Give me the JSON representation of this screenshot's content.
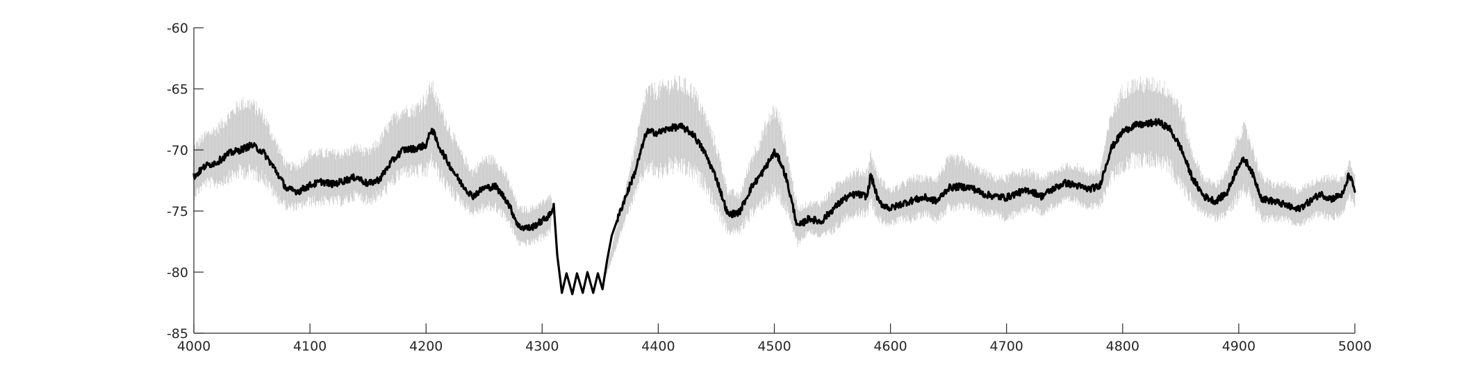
{
  "chart_data": {
    "type": "line",
    "title": "",
    "xlabel": "",
    "ylabel": "",
    "xlim": [
      4000,
      5000
    ],
    "ylim": [
      -85,
      -60
    ],
    "x_ticks": [
      4000,
      4100,
      4200,
      4300,
      4400,
      4500,
      4600,
      4700,
      4800,
      4900,
      5000
    ],
    "y_ticks": [
      -60,
      -65,
      -70,
      -75,
      -80,
      -85
    ],
    "x_tick_labels": [
      "4000",
      "4100",
      "4200",
      "4300",
      "4400",
      "4500",
      "4600",
      "4700",
      "4800",
      "4900",
      "5000"
    ],
    "y_tick_labels": [
      "-60",
      "-65",
      "-70",
      "-75",
      "-80",
      "-85"
    ],
    "grid": false,
    "legend": "none",
    "series": [
      {
        "role": "mean",
        "color": "#000000",
        "x": [
          4000,
          4010,
          4020,
          4030,
          4040,
          4050,
          4060,
          4070,
          4080,
          4090,
          4100,
          4110,
          4120,
          4130,
          4140,
          4150,
          4160,
          4170,
          4180,
          4190,
          4200,
          4205,
          4210,
          4220,
          4230,
          4240,
          4250,
          4260,
          4270,
          4280,
          4290,
          4300,
          4307,
          4310,
          4313,
          4317,
          4321,
          4326,
          4330,
          4335,
          4339,
          4344,
          4348,
          4352,
          4356,
          4360,
          4370,
          4380,
          4390,
          4400,
          4410,
          4420,
          4430,
          4440,
          4450,
          4460,
          4470,
          4480,
          4490,
          4500,
          4505,
          4510,
          4520,
          4530,
          4540,
          4550,
          4560,
          4570,
          4580,
          4583,
          4590,
          4600,
          4610,
          4620,
          4630,
          4640,
          4650,
          4660,
          4670,
          4680,
          4690,
          4700,
          4710,
          4720,
          4730,
          4740,
          4750,
          4760,
          4770,
          4780,
          4790,
          4800,
          4810,
          4820,
          4830,
          4840,
          4850,
          4860,
          4870,
          4880,
          4890,
          4900,
          4905,
          4910,
          4920,
          4930,
          4940,
          4950,
          4960,
          4970,
          4980,
          4990,
          4995,
          5000
        ],
        "y": [
          -72.2,
          -71.3,
          -71.0,
          -70.3,
          -70.0,
          -69.6,
          -70.2,
          -71.6,
          -73.2,
          -73.4,
          -72.9,
          -72.6,
          -72.8,
          -72.5,
          -72.2,
          -72.8,
          -72.4,
          -71.0,
          -70.0,
          -69.9,
          -69.6,
          -68.2,
          -69.5,
          -71.2,
          -72.7,
          -73.8,
          -73.1,
          -73.0,
          -74.2,
          -76.3,
          -76.4,
          -75.8,
          -75.3,
          -74.5,
          -78.6,
          -81.7,
          -80.1,
          -81.8,
          -80.1,
          -81.7,
          -80.0,
          -81.7,
          -80.1,
          -81.4,
          -79.0,
          -77.0,
          -74.3,
          -71.8,
          -68.5,
          -68.6,
          -68.2,
          -68.1,
          -68.7,
          -70.2,
          -72.3,
          -75.3,
          -75.1,
          -73.1,
          -71.8,
          -70.2,
          -70.9,
          -72.2,
          -76.3,
          -75.6,
          -75.9,
          -74.9,
          -74.0,
          -73.6,
          -73.8,
          -72.0,
          -74.3,
          -74.8,
          -74.4,
          -74.1,
          -73.9,
          -74.2,
          -73.1,
          -73.0,
          -73.1,
          -73.6,
          -73.8,
          -73.9,
          -73.5,
          -73.3,
          -73.8,
          -73.2,
          -72.7,
          -72.9,
          -73.2,
          -73.0,
          -69.9,
          -68.5,
          -68.0,
          -67.9,
          -67.7,
          -68.2,
          -69.8,
          -72.3,
          -73.8,
          -74.2,
          -73.5,
          -71.2,
          -70.8,
          -71.5,
          -74.0,
          -74.2,
          -74.5,
          -74.9,
          -74.3,
          -73.6,
          -74.0,
          -73.6,
          -72.0,
          -73.3
        ]
      },
      {
        "role": "variability",
        "color": "#c8c8c8",
        "x": [
          4000,
          4010,
          4020,
          4030,
          4040,
          4050,
          4060,
          4070,
          4080,
          4090,
          4100,
          4110,
          4120,
          4130,
          4140,
          4150,
          4160,
          4170,
          4180,
          4190,
          4200,
          4205,
          4210,
          4220,
          4230,
          4240,
          4250,
          4260,
          4270,
          4280,
          4290,
          4300,
          4307,
          4310,
          4350,
          4360,
          4370,
          4380,
          4390,
          4400,
          4410,
          4420,
          4430,
          4440,
          4450,
          4460,
          4470,
          4480,
          4490,
          4500,
          4505,
          4510,
          4520,
          4530,
          4540,
          4550,
          4560,
          4570,
          4580,
          4583,
          4590,
          4600,
          4610,
          4620,
          4630,
          4640,
          4650,
          4660,
          4670,
          4680,
          4690,
          4700,
          4710,
          4720,
          4730,
          4740,
          4750,
          4760,
          4770,
          4780,
          4790,
          4800,
          4810,
          4820,
          4830,
          4840,
          4850,
          4860,
          4870,
          4880,
          4890,
          4900,
          4905,
          4910,
          4920,
          4930,
          4940,
          4950,
          4960,
          4970,
          4980,
          4990,
          4995,
          5000
        ],
        "upper": [
          -70.0,
          -69.0,
          -68.5,
          -67.5,
          -66.5,
          -66.5,
          -67.5,
          -69.5,
          -71.5,
          -71.5,
          -70.5,
          -70.5,
          -70.5,
          -70.5,
          -70.0,
          -70.5,
          -69.5,
          -68.0,
          -67.0,
          -67.0,
          -66.0,
          -65.0,
          -66.5,
          -68.5,
          -70.5,
          -72.0,
          -71.0,
          -71.0,
          -72.5,
          -75.0,
          -75.0,
          -74.5,
          -74.0,
          -74.5,
          -81.5,
          -78.0,
          -74.0,
          -70.0,
          -65.5,
          -65.5,
          -65.0,
          -65.0,
          -65.5,
          -67.5,
          -70.0,
          -73.5,
          -74.0,
          -71.0,
          -69.0,
          -67.0,
          -68.0,
          -70.0,
          -75.0,
          -74.5,
          -74.5,
          -73.5,
          -72.5,
          -72.0,
          -72.0,
          -70.5,
          -72.5,
          -73.5,
          -73.0,
          -72.5,
          -72.5,
          -72.5,
          -71.0,
          -71.0,
          -71.5,
          -72.0,
          -72.5,
          -72.5,
          -72.0,
          -72.0,
          -72.5,
          -72.0,
          -71.5,
          -71.5,
          -72.0,
          -72.0,
          -67.5,
          -65.5,
          -65.0,
          -65.0,
          -65.0,
          -65.5,
          -67.0,
          -70.5,
          -72.5,
          -73.0,
          -72.0,
          -69.0,
          -68.5,
          -69.5,
          -72.5,
          -73.0,
          -73.0,
          -73.5,
          -73.0,
          -72.5,
          -72.5,
          -72.5,
          -71.0,
          -72.0
        ],
        "lower": [
          -73.5,
          -72.5,
          -72.5,
          -72.0,
          -71.5,
          -71.5,
          -72.0,
          -73.5,
          -74.5,
          -74.5,
          -74.0,
          -74.0,
          -74.0,
          -74.0,
          -73.5,
          -74.0,
          -73.5,
          -72.5,
          -71.5,
          -71.5,
          -71.5,
          -70.5,
          -71.5,
          -73.0,
          -74.0,
          -75.0,
          -74.5,
          -74.5,
          -75.5,
          -77.5,
          -77.5,
          -77.0,
          -76.5,
          -74.5,
          -81.5,
          -79.0,
          -76.0,
          -73.5,
          -71.0,
          -71.5,
          -71.0,
          -71.0,
          -71.5,
          -72.5,
          -74.5,
          -76.5,
          -76.5,
          -75.0,
          -74.0,
          -73.0,
          -73.5,
          -74.5,
          -77.5,
          -76.5,
          -77.0,
          -76.5,
          -75.5,
          -75.0,
          -75.0,
          -74.0,
          -75.5,
          -76.0,
          -75.5,
          -75.5,
          -75.0,
          -75.5,
          -74.5,
          -74.5,
          -74.5,
          -75.0,
          -75.0,
          -75.5,
          -75.0,
          -74.5,
          -75.0,
          -74.5,
          -74.0,
          -74.0,
          -74.5,
          -74.5,
          -72.0,
          -71.0,
          -70.5,
          -70.5,
          -70.5,
          -71.0,
          -72.5,
          -74.0,
          -75.0,
          -75.5,
          -75.0,
          -73.5,
          -73.0,
          -73.5,
          -75.5,
          -75.5,
          -75.5,
          -76.0,
          -75.5,
          -75.0,
          -75.5,
          -75.0,
          -73.5,
          -74.5
        ]
      }
    ]
  }
}
